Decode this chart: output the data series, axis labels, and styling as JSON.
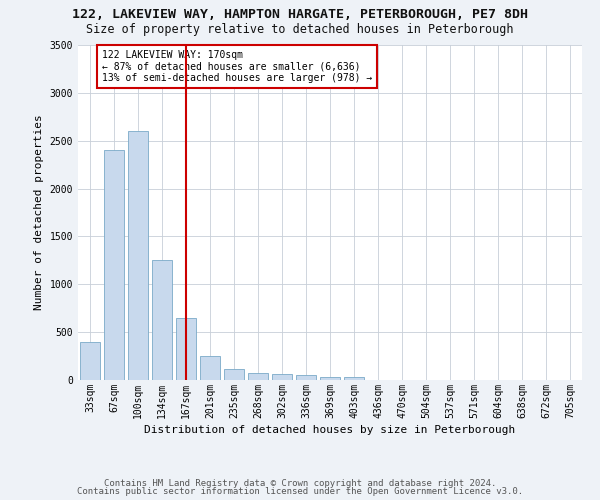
{
  "title1": "122, LAKEVIEW WAY, HAMPTON HARGATE, PETERBOROUGH, PE7 8DH",
  "title2": "Size of property relative to detached houses in Peterborough",
  "xlabel": "Distribution of detached houses by size in Peterborough",
  "ylabel": "Number of detached properties",
  "categories": [
    "33sqm",
    "67sqm",
    "100sqm",
    "134sqm",
    "167sqm",
    "201sqm",
    "235sqm",
    "268sqm",
    "302sqm",
    "336sqm",
    "369sqm",
    "403sqm",
    "436sqm",
    "470sqm",
    "504sqm",
    "537sqm",
    "571sqm",
    "604sqm",
    "638sqm",
    "672sqm",
    "705sqm"
  ],
  "values": [
    400,
    2400,
    2600,
    1250,
    650,
    250,
    110,
    70,
    65,
    50,
    30,
    28,
    5,
    3,
    2,
    1,
    0,
    0,
    0,
    0,
    0
  ],
  "bar_color": "#c8d9ed",
  "bar_edge_color": "#7aaac8",
  "line_x_index": 4,
  "line_color": "#cc0000",
  "annotation_text": "122 LAKEVIEW WAY: 170sqm\n← 87% of detached houses are smaller (6,636)\n13% of semi-detached houses are larger (978) →",
  "annotation_box_color": "#ffffff",
  "annotation_box_edge_color": "#cc0000",
  "ylim": [
    0,
    3500
  ],
  "yticks": [
    0,
    500,
    1000,
    1500,
    2000,
    2500,
    3000,
    3500
  ],
  "footer1": "Contains HM Land Registry data © Crown copyright and database right 2024.",
  "footer2": "Contains public sector information licensed under the Open Government Licence v3.0.",
  "bg_color": "#eef2f7",
  "plot_bg_color": "#ffffff",
  "grid_color": "#c8cfd8",
  "title1_fontsize": 9.5,
  "title2_fontsize": 8.5,
  "ylabel_fontsize": 8,
  "xlabel_fontsize": 8,
  "tick_fontsize": 7,
  "footer_fontsize": 6.5,
  "annotation_fontsize": 7
}
